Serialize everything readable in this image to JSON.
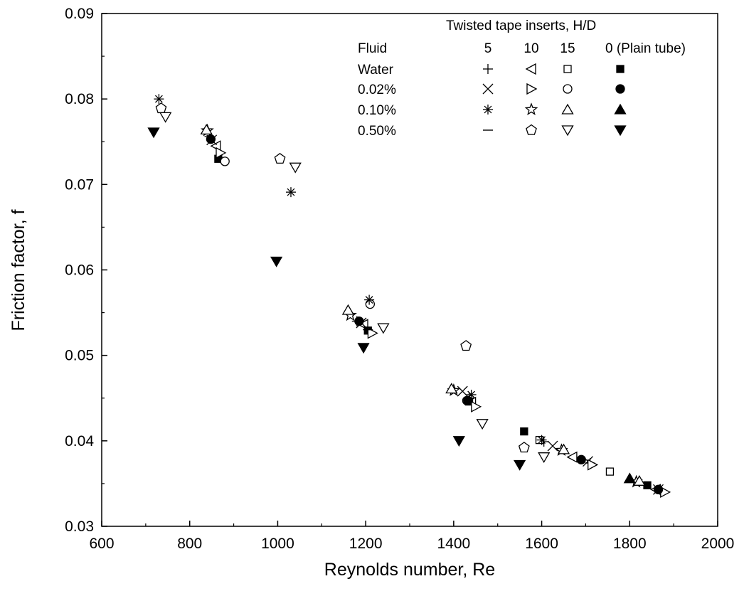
{
  "chart_data": {
    "type": "scatter",
    "title": "",
    "xlabel": "Reynolds number, Re",
    "ylabel": "Friction factor,  f",
    "xlim": [
      600,
      2000
    ],
    "ylim": [
      0.03,
      0.09
    ],
    "xticks": [
      600,
      800,
      1000,
      1200,
      1400,
      1600,
      1800,
      2000
    ],
    "yticks": [
      0.03,
      0.04,
      0.05,
      0.06,
      0.07,
      0.08,
      0.09
    ],
    "xtick_labels": [
      "600",
      "800",
      "1000",
      "1200",
      "1400",
      "1600",
      "1800",
      "2000"
    ],
    "ytick_labels": [
      "0.03",
      "0.04",
      "0.05",
      "0.06",
      "0.07",
      "0.08",
      "0.09"
    ],
    "grid": false,
    "legend": {
      "placement": "top-right",
      "title": "Twisted tape inserts, H/D",
      "fluid_header": "Fluid",
      "hd_headers": [
        "5",
        "10",
        "15",
        "0 (Plain tube)"
      ],
      "fluids": [
        "Water",
        "0.02%",
        "0.10%",
        "0.50%"
      ],
      "markers": [
        [
          "plus",
          "triangle-left-open",
          "square-open",
          "square-filled"
        ],
        [
          "x",
          "triangle-right-open",
          "circle-open",
          "circle-filled"
        ],
        [
          "asterisk",
          "star-open",
          "triangle-up-open",
          "triangle-up-filled"
        ],
        [
          "minus",
          "pentagon-open",
          "triangle-down-open",
          "triangle-down-filled"
        ]
      ]
    },
    "series": [
      {
        "name": "Water, H/D 5",
        "marker": "plus",
        "x": [
          845,
          1180,
          1435,
          1605,
          1710,
          1870
        ],
        "y": [
          0.0756,
          0.054,
          0.045,
          0.0399,
          0.0374,
          0.0342
        ]
      },
      {
        "name": "Water, H/D 10",
        "marker": "triangle-left-open",
        "x": [
          860,
          1195,
          1440,
          1670,
          1860
        ],
        "y": [
          0.0745,
          0.0536,
          0.0445,
          0.0381,
          0.0343
        ]
      },
      {
        "name": "Water, H/D 15",
        "marker": "square-open",
        "x": [
          1595,
          1755
        ],
        "y": [
          0.0401,
          0.0364
        ]
      },
      {
        "name": "Water, H/D 0 (Plain tube)",
        "marker": "square-filled",
        "x": [
          865,
          1205,
          1435,
          1560,
          1840
        ],
        "y": [
          0.073,
          0.0529,
          0.0446,
          0.0411,
          0.0348
        ]
      },
      {
        "name": "0.02%, H/D 5",
        "marker": "x",
        "x": [
          850,
          1190,
          1420,
          1625,
          1705,
          1865
        ],
        "y": [
          0.0752,
          0.0538,
          0.0458,
          0.0394,
          0.0376,
          0.0343
        ]
      },
      {
        "name": "0.02%, H/D 10",
        "marker": "triangle-right-open",
        "x": [
          870,
          1215,
          1450,
          1715,
          1880
        ],
        "y": [
          0.0737,
          0.0526,
          0.044,
          0.0372,
          0.034
        ]
      },
      {
        "name": "0.02%, H/D 15",
        "marker": "circle-open",
        "x": [
          880,
          1210,
          1430
        ],
        "y": [
          0.0727,
          0.056,
          0.0447
        ]
      },
      {
        "name": "0.02%, H/D 0 (Plain tube)",
        "marker": "circle-filled",
        "x": [
          848,
          1185,
          1432,
          1690,
          1865
        ],
        "y": [
          0.0753,
          0.054,
          0.0447,
          0.0378,
          0.0343
        ]
      },
      {
        "name": "0.10%, H/D 5",
        "marker": "asterisk",
        "x": [
          730,
          1030,
          1208,
          1440,
          1600
        ],
        "y": [
          0.08,
          0.0691,
          0.0565,
          0.0454,
          0.0401
        ]
      },
      {
        "name": "0.10%, H/D 10",
        "marker": "star-open",
        "x": [
          840,
          1165,
          1400,
          1645,
          1815
        ],
        "y": [
          0.0763,
          0.0547,
          0.0459,
          0.0389,
          0.0352
        ]
      },
      {
        "name": "0.10%, H/D 15",
        "marker": "triangle-up-open",
        "x": [
          838,
          1160,
          1395,
          1650,
          1822
        ],
        "y": [
          0.0764,
          0.0553,
          0.0461,
          0.039,
          0.0353
        ]
      },
      {
        "name": "0.10%, H/D 0 (Plain tube)",
        "marker": "triangle-up-filled",
        "x": [
          1800
        ],
        "y": [
          0.0356
        ]
      },
      {
        "name": "0.50%, H/D 5",
        "marker": "minus",
        "x": [
          1205
        ],
        "y": [
          0.053
        ]
      },
      {
        "name": "0.50%, H/D 10",
        "marker": "pentagon-open",
        "x": [
          735,
          1005,
          1428,
          1560
        ],
        "y": [
          0.0789,
          0.073,
          0.0511,
          0.0392
        ]
      },
      {
        "name": "0.50%, H/D 15",
        "marker": "triangle-down-open",
        "x": [
          745,
          1040,
          1240,
          1465,
          1605
        ],
        "y": [
          0.0779,
          0.072,
          0.0532,
          0.042,
          0.0381
        ]
      },
      {
        "name": "0.50%, H/D 0 (Plain tube)",
        "marker": "triangle-down-filled",
        "x": [
          718,
          997,
          1195,
          1412,
          1550
        ],
        "y": [
          0.0761,
          0.061,
          0.0509,
          0.04,
          0.0372
        ]
      }
    ]
  }
}
